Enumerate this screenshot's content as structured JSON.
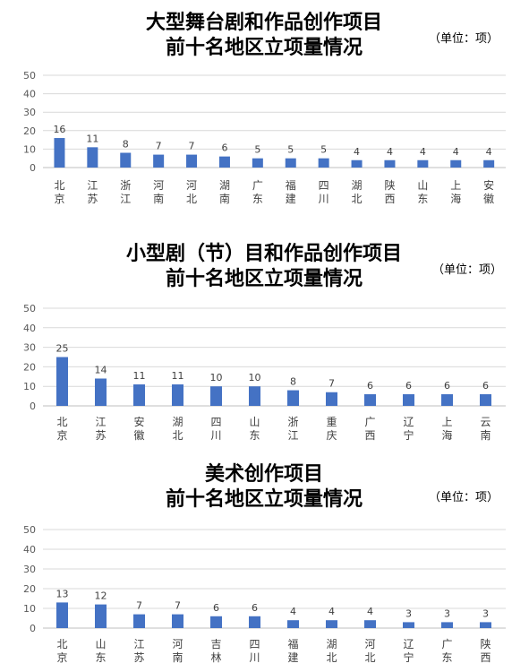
{
  "unit_label": "（单位：项）",
  "chart_data": [
    {
      "type": "bar",
      "title": [
        "大型舞台剧和作品创作项目",
        "前十名地区立项量情况"
      ],
      "unit": "（单位：项）",
      "ylim": [
        0,
        50
      ],
      "yticks": [
        0,
        10,
        20,
        30,
        40,
        50
      ],
      "grid": true,
      "categories": [
        "北京",
        "江苏",
        "浙江",
        "河南",
        "河北",
        "湖南",
        "广东",
        "福建",
        "四川",
        "湖北",
        "陕西",
        "山东",
        "上海",
        "安徽"
      ],
      "values": [
        16,
        11,
        8,
        7,
        7,
        6,
        5,
        5,
        5,
        4,
        4,
        4,
        4,
        4
      ],
      "bar_color": "#4472C4"
    },
    {
      "type": "bar",
      "title": [
        "小型剧（节）目和作品创作项目",
        "前十名地区立项量情况"
      ],
      "unit": "（单位：项）",
      "ylim": [
        0,
        50
      ],
      "yticks": [
        0,
        10,
        20,
        30,
        40,
        50
      ],
      "grid": true,
      "categories": [
        "北京",
        "江苏",
        "安徽",
        "湖北",
        "四川",
        "山东",
        "浙江",
        "重庆",
        "广西",
        "辽宁",
        "上海",
        "云南"
      ],
      "values": [
        25,
        14,
        11,
        11,
        10,
        10,
        8,
        7,
        6,
        6,
        6,
        6
      ],
      "bar_color": "#4472C4"
    },
    {
      "type": "bar",
      "title": [
        "美术创作项目",
        "前十名地区立项量情况"
      ],
      "unit": "（单位：项）",
      "ylim": [
        0,
        50
      ],
      "yticks": [
        0,
        10,
        20,
        30,
        40,
        50
      ],
      "grid": true,
      "categories": [
        "北京",
        "山东",
        "江苏",
        "河南",
        "吉林",
        "四川",
        "福建",
        "湖北",
        "河北",
        "辽宁",
        "广东",
        "陕西"
      ],
      "values": [
        13,
        12,
        7,
        7,
        6,
        6,
        4,
        4,
        4,
        3,
        3,
        3
      ],
      "bar_color": "#4472C4"
    }
  ]
}
